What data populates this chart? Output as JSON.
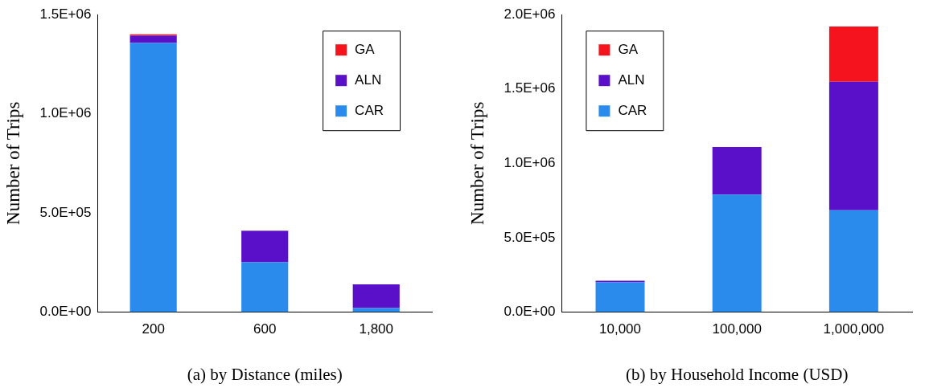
{
  "chart_data": [
    {
      "type": "bar",
      "stacked": true,
      "xlabel": "(a) by Distance (miles)",
      "ylabel": "Number of Trips",
      "categories": [
        "200",
        "600",
        "1,800"
      ],
      "series": [
        {
          "name": "CAR",
          "color": "#2b8bed",
          "values": [
            1357000,
            251000,
            20000
          ]
        },
        {
          "name": "ALN",
          "color": "#5a0fc8",
          "values": [
            36000,
            159000,
            119000
          ]
        },
        {
          "name": "GA",
          "color": "#f5141e",
          "values": [
            8000,
            0,
            0
          ]
        }
      ],
      "ylim": [
        0,
        1500000
      ],
      "yticks": [
        {
          "value": 0,
          "label": "0.0E+00"
        },
        {
          "value": 500000,
          "label": "5.0E+05"
        },
        {
          "value": 1000000,
          "label": "1.0E+06"
        },
        {
          "value": 1500000,
          "label": "1.5E+06"
        }
      ],
      "grid": false,
      "legend": "top right"
    },
    {
      "type": "bar",
      "stacked": true,
      "xlabel": "(b) by Household Income (USD)",
      "ylabel": "Number of Trips",
      "categories": [
        "10,000",
        "100,000",
        "1,000,000"
      ],
      "series": [
        {
          "name": "CAR",
          "color": "#2b8bed",
          "values": [
            200000,
            790000,
            684000
          ]
        },
        {
          "name": "ALN",
          "color": "#5a0fc8",
          "values": [
            10000,
            319000,
            865000
          ]
        },
        {
          "name": "GA",
          "color": "#f5141e",
          "values": [
            0,
            0,
            371000
          ]
        }
      ],
      "ylim": [
        0,
        2000000
      ],
      "yticks": [
        {
          "value": 0,
          "label": "0.0E+00"
        },
        {
          "value": 500000,
          "label": "5.0E+05"
        },
        {
          "value": 1000000,
          "label": "1.0E+06"
        },
        {
          "value": 1500000,
          "label": "1.5E+06"
        },
        {
          "value": 2000000,
          "label": "2.0E+06"
        }
      ],
      "grid": false,
      "legend": "top left"
    }
  ]
}
